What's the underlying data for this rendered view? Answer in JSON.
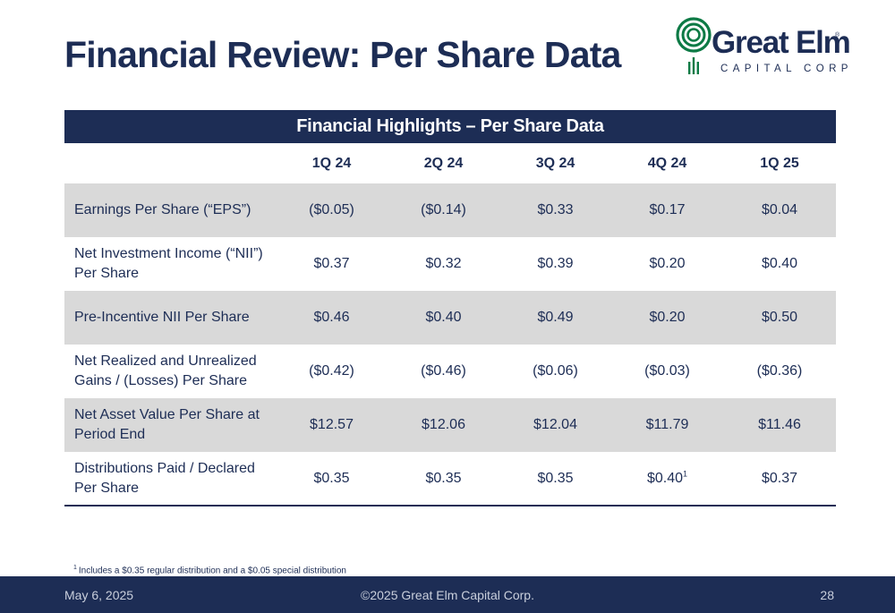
{
  "slide": {
    "title": "Financial Review: Per Share Data"
  },
  "logo": {
    "name": "Great Elm",
    "reg_mark": "®",
    "subtitle": "CAPITAL CORP",
    "brand_color": "#0d7a45",
    "text_color": "#1d2d55"
  },
  "table": {
    "banner": "Financial Highlights – Per Share Data",
    "columns": [
      "",
      "1Q 24",
      "2Q 24",
      "3Q 24",
      "4Q 24",
      "1Q 25"
    ],
    "rows": [
      {
        "label": "Earnings Per Share (“EPS”)",
        "values": [
          "($0.05)",
          "($0.14)",
          "$0.33",
          "$0.17",
          "$0.04"
        ]
      },
      {
        "label": "Net Investment Income (“NII”) Per Share",
        "values": [
          "$0.37",
          "$0.32",
          "$0.39",
          "$0.20",
          "$0.40"
        ]
      },
      {
        "label": "Pre-Incentive NII Per Share",
        "values": [
          "$0.46",
          "$0.40",
          "$0.49",
          "$0.20",
          "$0.50"
        ]
      },
      {
        "label": "Net Realized and Unrealized Gains / (Losses) Per Share",
        "values": [
          "($0.42)",
          "($0.46)",
          "($0.06)",
          "($0.03)",
          "($0.36)"
        ]
      },
      {
        "label": "Net Asset Value Per Share at Period End",
        "values": [
          "$12.57",
          "$12.06",
          "$12.04",
          "$11.79",
          "$11.46"
        ]
      },
      {
        "label": "Distributions Paid / Declared Per Share",
        "values": [
          "$0.35",
          "$0.35",
          "$0.35",
          "$0.40",
          "$0.37"
        ],
        "footnote_on": "$0.40",
        "footnote_marker": "1"
      }
    ]
  },
  "footnote": {
    "marker": "1",
    "text": "Includes a $0.35 regular distribution and a $0.05 special distribution"
  },
  "footer": {
    "date": "May 6, 2025",
    "copyright": "©2025 Great Elm Capital Corp.",
    "page": "28"
  },
  "colors": {
    "navy": "#1d2d55",
    "row_shade": "#d9d9d9",
    "footer_text": "#c9cfdc"
  }
}
